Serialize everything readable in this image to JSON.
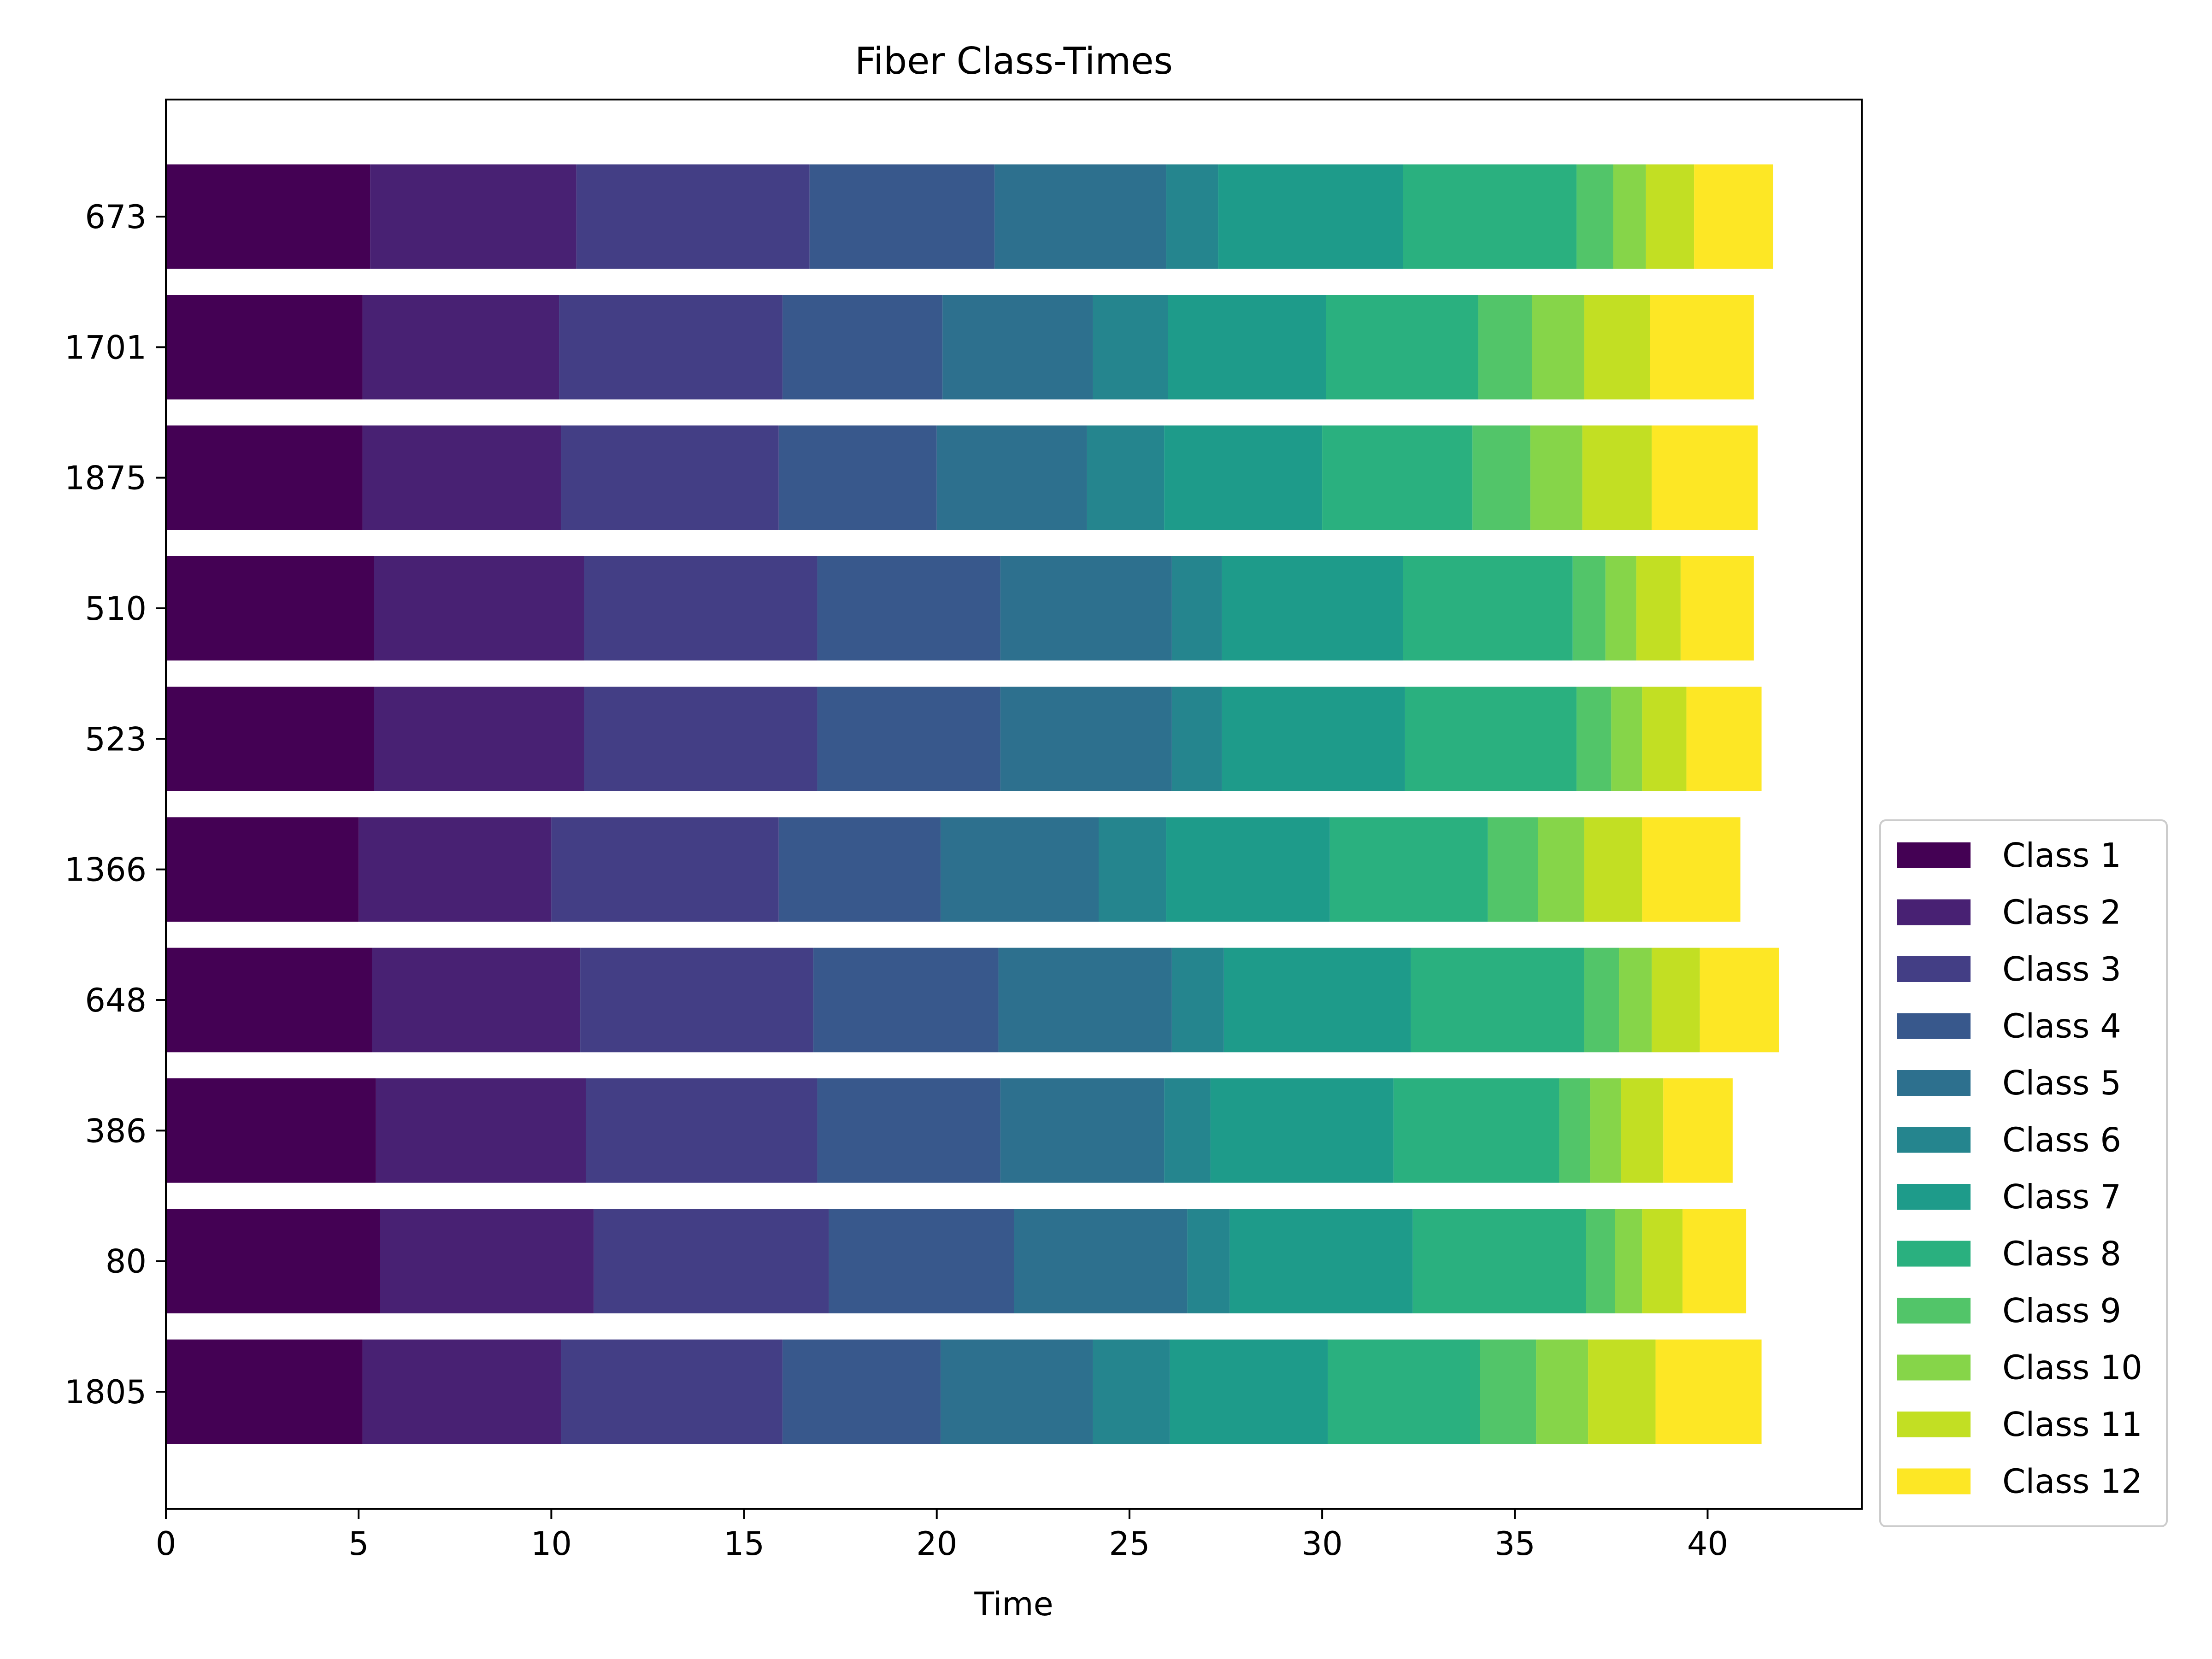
{
  "chart_data": {
    "type": "bar",
    "orientation": "horizontal",
    "stacked": true,
    "title": "Fiber Class-Times",
    "xlabel": "Time",
    "ylabel": "",
    "xlim": [
      0,
      44
    ],
    "xticks": [
      0,
      5,
      10,
      15,
      20,
      25,
      30,
      35,
      40
    ],
    "categories": [
      "673",
      "1701",
      "1875",
      "510",
      "523",
      "1366",
      "648",
      "386",
      "80",
      "1805"
    ],
    "legend_position": "right-bottom-outside",
    "grid": false,
    "series": [
      {
        "name": "Class 1",
        "color": "#440154",
        "values": [
          5.3,
          5.1,
          5.1,
          5.4,
          5.4,
          5.0,
          5.35,
          5.45,
          5.55,
          5.1
        ]
      },
      {
        "name": "Class 2",
        "color": "#482173",
        "values": [
          5.35,
          5.1,
          5.15,
          5.45,
          5.45,
          5.0,
          5.4,
          5.45,
          5.55,
          5.15
        ]
      },
      {
        "name": "Class 3",
        "color": "#433e85",
        "values": [
          6.05,
          5.8,
          5.65,
          6.05,
          6.05,
          5.9,
          6.05,
          6.0,
          6.1,
          5.75
        ]
      },
      {
        "name": "Class 4",
        "color": "#38588c",
        "values": [
          4.8,
          4.15,
          4.1,
          4.75,
          4.75,
          4.2,
          4.8,
          4.75,
          4.8,
          4.1
        ]
      },
      {
        "name": "Class 5",
        "color": "#2d708e",
        "values": [
          4.45,
          3.9,
          3.9,
          4.45,
          4.45,
          4.1,
          4.5,
          4.25,
          4.5,
          3.95
        ]
      },
      {
        "name": "Class 6",
        "color": "#25858e",
        "values": [
          1.35,
          1.95,
          2.0,
          1.3,
          1.3,
          1.75,
          1.35,
          1.2,
          1.1,
          2.0
        ]
      },
      {
        "name": "Class 7",
        "color": "#1e9b8a",
        "values": [
          4.8,
          4.1,
          4.1,
          4.7,
          4.75,
          4.25,
          4.85,
          4.75,
          4.75,
          4.1
        ]
      },
      {
        "name": "Class 8",
        "color": "#2ab07f",
        "values": [
          4.5,
          3.95,
          3.9,
          4.4,
          4.45,
          4.1,
          4.5,
          4.3,
          4.5,
          3.95
        ]
      },
      {
        "name": "Class 9",
        "color": "#52c569",
        "values": [
          0.95,
          1.4,
          1.5,
          0.85,
          0.9,
          1.3,
          0.9,
          0.8,
          0.75,
          1.45
        ]
      },
      {
        "name": "Class 10",
        "color": "#86d549",
        "values": [
          0.85,
          1.35,
          1.35,
          0.8,
          0.8,
          1.2,
          0.85,
          0.8,
          0.7,
          1.35
        ]
      },
      {
        "name": "Class 11",
        "color": "#c2df23",
        "values": [
          1.25,
          1.7,
          1.8,
          1.15,
          1.15,
          1.5,
          1.25,
          1.1,
          1.05,
          1.75
        ]
      },
      {
        "name": "Class 12",
        "color": "#fde725",
        "values": [
          2.05,
          2.7,
          2.75,
          1.9,
          1.95,
          2.55,
          2.05,
          1.8,
          1.65,
          2.75
        ]
      }
    ]
  }
}
